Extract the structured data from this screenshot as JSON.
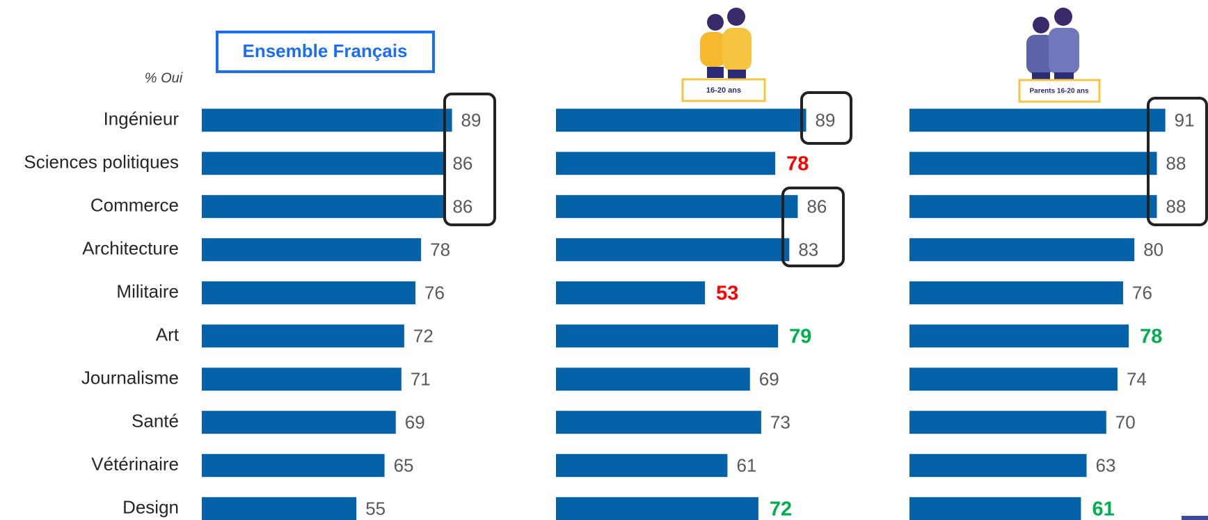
{
  "chart_data": [
    {
      "type": "bar",
      "orientation": "horizontal",
      "title": "Ensemble Français",
      "y_label": "% Oui",
      "categories": [
        "Ingénieur",
        "Sciences politiques",
        "Commerce",
        "Architecture",
        "Militaire",
        "Art",
        "Journalisme",
        "Santé",
        "Vétérinaire",
        "Design"
      ],
      "values": [
        89,
        86,
        86,
        78,
        76,
        72,
        71,
        69,
        65,
        55
      ],
      "color": "#0562a8",
      "value_label_colors": [
        "#595959",
        "#595959",
        "#595959",
        "#595959",
        "#595959",
        "#595959",
        "#595959",
        "#595959",
        "#595959",
        "#595959"
      ]
    },
    {
      "type": "bar",
      "orientation": "horizontal",
      "title": "16-20 ans",
      "values": [
        89,
        78,
        86,
        83,
        53,
        79,
        69,
        73,
        61,
        72
      ],
      "color": "#0562a8",
      "value_label_colors": [
        "#595959",
        "#ff0000",
        "#595959",
        "#595959",
        "#ff0000",
        "#00b050",
        "#595959",
        "#595959",
        "#595959",
        "#00b050"
      ]
    },
    {
      "type": "bar",
      "orientation": "horizontal",
      "title": "Parents 16-20 ans",
      "values": [
        91,
        88,
        88,
        80,
        76,
        78,
        74,
        70,
        63,
        61
      ],
      "color": "#0562a8",
      "value_label_colors": [
        "#595959",
        "#595959",
        "#595959",
        "#595959",
        "#595959",
        "#00b050",
        "#595959",
        "#595959",
        "#595959",
        "#00b050"
      ]
    }
  ]
}
